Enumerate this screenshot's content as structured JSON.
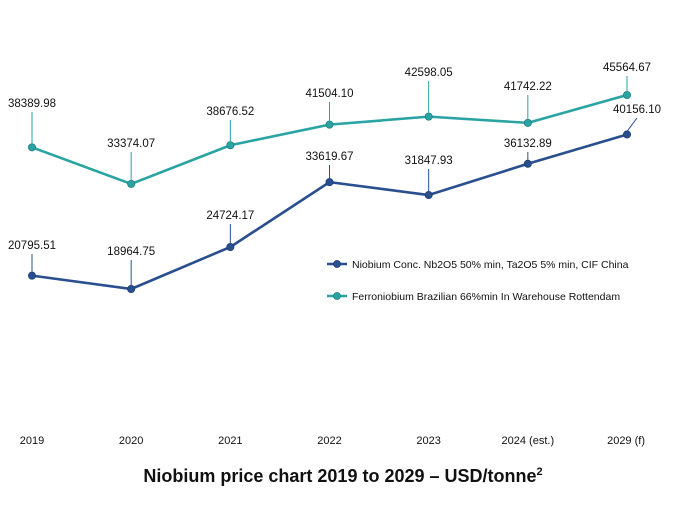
{
  "chart_data": {
    "type": "line",
    "title": "Niobium price chart 2019 to 2029 – USD/tonne",
    "title_superscript": "2",
    "xlabel": "",
    "ylabel": "",
    "categories": [
      "2019",
      "2020",
      "2021",
      "2022",
      "2023",
      "2024 (est.)",
      "2029 (f)"
    ],
    "ylim": [
      0,
      50000
    ],
    "grid": false,
    "legend_position": "right",
    "series": [
      {
        "name": "Niobium Conc. Nb2O5 50% min, Ta2O5 5% min, CIF China",
        "color": "#2a4f8f",
        "values": [
          20795.51,
          18964.75,
          24724.17,
          33619.67,
          31847.93,
          36132.89,
          40156.1
        ],
        "labels": [
          "20795.51",
          "18964.75",
          "24724.17",
          "33619.67",
          "31847.93",
          "36132.89",
          "40156.10"
        ]
      },
      {
        "name": "Ferroniobium Brazilian 66%min In Warehouse Rottendam",
        "color": "#2aa3a3",
        "values": [
          38389.98,
          33374.07,
          38676.52,
          41504.1,
          42598.05,
          41742.22,
          45564.67
        ],
        "labels": [
          "38389.98",
          "33374.07",
          "38676.52",
          "41504.10",
          "42598.05",
          "41742.22",
          "45564.67"
        ]
      }
    ]
  }
}
